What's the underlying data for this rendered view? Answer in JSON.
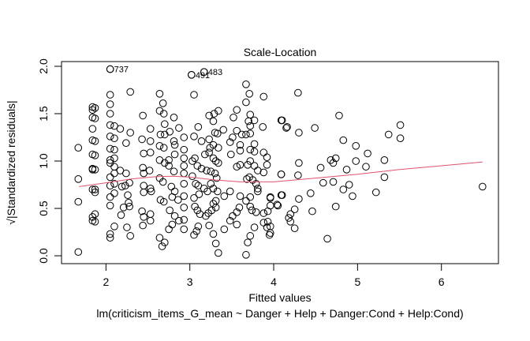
{
  "chart_data": {
    "type": "scatter",
    "title": "Scale-Location",
    "xlabel": "Fitted values",
    "sublabel": "lm(criticism_items_G_mean ~ Danger + Help + Danger:Cond + Help:Cond)",
    "ylabel": "√|Standardized residuals|",
    "xlim": [
      1.47,
      6.68
    ],
    "ylim": [
      -0.083,
      2.05
    ],
    "xticks": [
      2,
      3,
      4,
      5,
      6
    ],
    "xtick_labels": [
      "2",
      "3",
      "4",
      "5",
      "6"
    ],
    "yticks": [
      0.0,
      0.5,
      1.0,
      1.5,
      2.0
    ],
    "ytick_labels": [
      "0.0",
      "0.5",
      "1.0",
      "1.5",
      "2.0"
    ],
    "grid": false,
    "point_color": "#000000",
    "smooth_color": "#DF536B",
    "labeled_points": [
      {
        "label": "737",
        "x": 2.05,
        "y": 1.97
      },
      {
        "label": "491",
        "x": 3.02,
        "y": 1.91
      },
      {
        "label": "483",
        "x": 3.17,
        "y": 1.94
      }
    ],
    "smooth": [
      [
        1.68,
        0.73
      ],
      [
        2.0,
        0.77
      ],
      [
        2.3,
        0.81
      ],
      [
        2.6,
        0.835
      ],
      [
        2.8,
        0.84
      ],
      [
        3.0,
        0.83
      ],
      [
        3.3,
        0.8
      ],
      [
        3.6,
        0.78
      ],
      [
        4.0,
        0.78
      ],
      [
        4.5,
        0.82
      ],
      [
        5.0,
        0.86
      ],
      [
        5.5,
        0.91
      ],
      [
        6.0,
        0.95
      ],
      [
        6.49,
        0.99
      ]
    ],
    "points": [
      [
        1.67,
        1.14
      ],
      [
        1.67,
        0.81
      ],
      [
        1.67,
        0.57
      ],
      [
        1.67,
        0.04
      ],
      [
        1.84,
        1.57
      ],
      [
        1.84,
        1.54
      ],
      [
        1.84,
        1.46
      ],
      [
        1.84,
        1.34
      ],
      [
        1.84,
        1.22
      ],
      [
        1.84,
        1.07
      ],
      [
        1.84,
        0.91
      ],
      [
        1.84,
        0.92
      ],
      [
        1.84,
        0.7
      ],
      [
        1.84,
        0.41
      ],
      [
        1.84,
        0.37
      ],
      [
        1.87,
        1.56
      ],
      [
        1.87,
        1.45
      ],
      [
        1.87,
        1.21
      ],
      [
        1.87,
        1.06
      ],
      [
        1.87,
        0.91
      ],
      [
        1.87,
        0.7
      ],
      [
        1.87,
        0.67
      ],
      [
        1.87,
        0.44
      ],
      [
        1.87,
        0.36
      ],
      [
        2.05,
        1.97
      ],
      [
        2.05,
        1.7
      ],
      [
        2.05,
        1.6
      ],
      [
        2.05,
        1.5
      ],
      [
        2.05,
        1.38
      ],
      [
        2.05,
        1.26
      ],
      [
        2.05,
        1.13
      ],
      [
        2.05,
        1.01
      ],
      [
        2.05,
        0.98
      ],
      [
        2.05,
        0.83
      ],
      [
        2.05,
        0.74
      ],
      [
        2.05,
        0.62
      ],
      [
        2.05,
        0.53
      ],
      [
        2.05,
        0.23
      ],
      [
        2.05,
        0.19
      ],
      [
        2.1,
        1.37
      ],
      [
        2.1,
        1.24
      ],
      [
        2.1,
        1.12
      ],
      [
        2.1,
        1.03
      ],
      [
        2.1,
        0.94
      ],
      [
        2.1,
        0.87
      ],
      [
        2.1,
        0.76
      ],
      [
        2.1,
        0.66
      ],
      [
        2.1,
        0.31
      ],
      [
        2.17,
        1.34
      ],
      [
        2.24,
        1.19
      ],
      [
        2.29,
        1.3
      ],
      [
        2.29,
        1.73
      ],
      [
        2.17,
        0.9
      ],
      [
        2.24,
        0.87
      ],
      [
        2.19,
        0.73
      ],
      [
        2.23,
        0.74
      ],
      [
        2.28,
        0.77
      ],
      [
        2.26,
        0.64
      ],
      [
        2.28,
        0.52
      ],
      [
        2.21,
        0.51
      ],
      [
        2.18,
        0.43
      ],
      [
        2.25,
        0.3
      ],
      [
        2.29,
        0.21
      ],
      [
        2.27,
        0.56
      ],
      [
        2.44,
        1.48
      ],
      [
        2.43,
        1.23
      ],
      [
        2.45,
        1.08
      ],
      [
        2.44,
        0.93
      ],
      [
        2.45,
        0.87
      ],
      [
        2.45,
        0.74
      ],
      [
        2.45,
        0.67
      ],
      [
        2.43,
        0.47
      ],
      [
        2.44,
        0.32
      ],
      [
        2.45,
        0.41
      ],
      [
        2.53,
        1.34
      ],
      [
        2.53,
        1.21
      ],
      [
        2.53,
        1.09
      ],
      [
        2.52,
        0.9
      ],
      [
        2.53,
        0.71
      ],
      [
        2.54,
        0.68
      ],
      [
        2.53,
        0.44
      ],
      [
        2.53,
        0.37
      ],
      [
        2.64,
        1.71
      ],
      [
        2.68,
        1.61
      ],
      [
        2.64,
        1.53
      ],
      [
        2.69,
        1.5
      ],
      [
        2.7,
        1.39
      ],
      [
        2.65,
        1.28
      ],
      [
        2.7,
        1.28
      ],
      [
        2.64,
        1.16
      ],
      [
        2.69,
        1.14
      ],
      [
        2.64,
        1.01
      ],
      [
        2.7,
        0.98
      ],
      [
        2.64,
        0.82
      ],
      [
        2.68,
        0.78
      ],
      [
        2.65,
        0.59
      ],
      [
        2.69,
        0.57
      ],
      [
        2.64,
        0.19
      ],
      [
        2.7,
        0.14
      ],
      [
        2.67,
        0.1
      ],
      [
        2.75,
        1.01
      ],
      [
        2.81,
        1.46
      ],
      [
        2.87,
        1.35
      ],
      [
        2.76,
        1.31
      ],
      [
        2.81,
        1.21
      ],
      [
        2.82,
        1.07
      ],
      [
        2.81,
        0.89
      ],
      [
        2.75,
        0.95
      ],
      [
        2.78,
        0.73
      ],
      [
        2.82,
        0.68
      ],
      [
        2.79,
        0.62
      ],
      [
        2.76,
        0.48
      ],
      [
        2.82,
        0.42
      ],
      [
        2.87,
        0.37
      ],
      [
        2.79,
        0.33
      ],
      [
        2.75,
        0.28
      ],
      [
        2.82,
        1.17
      ],
      [
        2.86,
        0.59
      ],
      [
        3.02,
        1.91
      ],
      [
        3.17,
        1.94
      ],
      [
        3.05,
        1.7
      ],
      [
        3.67,
        1.81
      ],
      [
        3.71,
        1.71
      ],
      [
        3.88,
        1.68
      ],
      [
        3.67,
        1.62
      ],
      [
        3.23,
        1.48
      ],
      [
        3.29,
        1.5
      ],
      [
        3.34,
        1.53
      ],
      [
        3.28,
        1.42
      ],
      [
        3.56,
        1.54
      ],
      [
        3.52,
        1.46
      ],
      [
        3.72,
        1.49
      ],
      [
        3.77,
        1.43
      ],
      [
        3.7,
        1.42
      ],
      [
        3.72,
        1.37
      ],
      [
        3.87,
        1.36
      ],
      [
        4.09,
        1.43
      ],
      [
        3.1,
        1.36
      ],
      [
        3.05,
        1.26
      ],
      [
        3.4,
        1.33
      ],
      [
        3.3,
        1.3
      ],
      [
        3.33,
        1.29
      ],
      [
        3.56,
        1.32
      ],
      [
        3.62,
        1.28
      ],
      [
        3.67,
        1.28
      ],
      [
        3.72,
        1.29
      ],
      [
        3.51,
        1.25
      ],
      [
        3.48,
        1.2
      ],
      [
        3.77,
        1.18
      ],
      [
        3.14,
        1.21
      ],
      [
        3.23,
        1.23
      ],
      [
        3.28,
        1.17
      ],
      [
        3.34,
        1.14
      ],
      [
        3.24,
        1.14
      ],
      [
        3.6,
        1.17
      ],
      [
        3.6,
        1.11
      ],
      [
        3.72,
        1.12
      ],
      [
        3.77,
        1.1
      ],
      [
        3.49,
        1.07
      ],
      [
        3.88,
        1.09
      ],
      [
        3.92,
        1.04
      ],
      [
        3.92,
        0.96
      ],
      [
        2.93,
        1.25
      ],
      [
        2.93,
        1.12
      ],
      [
        2.93,
        1.03
      ],
      [
        2.93,
        0.95
      ],
      [
        2.93,
        0.87
      ],
      [
        2.93,
        0.76
      ],
      [
        2.93,
        0.63
      ],
      [
        2.93,
        0.51
      ],
      [
        2.93,
        0.38
      ],
      [
        2.93,
        0.28
      ],
      [
        3.18,
        1.07
      ],
      [
        3.23,
        1.09
      ],
      [
        3.28,
        1.03
      ],
      [
        3.31,
        1.0
      ],
      [
        3.34,
        0.98
      ],
      [
        3.06,
        1.03
      ],
      [
        3.03,
        1.0
      ],
      [
        3.09,
        0.95
      ],
      [
        3.14,
        0.92
      ],
      [
        3.2,
        0.9
      ],
      [
        3.25,
        0.89
      ],
      [
        3.3,
        0.87
      ],
      [
        3.32,
        0.82
      ],
      [
        3.03,
        0.84
      ],
      [
        3.07,
        0.76
      ],
      [
        3.1,
        0.74
      ],
      [
        3.17,
        0.71
      ],
      [
        3.21,
        0.68
      ],
      [
        3.25,
        0.76
      ],
      [
        3.28,
        0.71
      ],
      [
        3.33,
        0.68
      ],
      [
        3.56,
        0.94
      ],
      [
        3.6,
        0.96
      ],
      [
        3.69,
        0.96
      ],
      [
        3.72,
        1.0
      ],
      [
        3.77,
        0.95
      ],
      [
        3.81,
        0.9
      ],
      [
        3.88,
        0.88
      ],
      [
        4.09,
        0.86
      ],
      [
        3.68,
        0.81
      ],
      [
        3.71,
        0.83
      ],
      [
        3.75,
        0.8
      ],
      [
        3.79,
        0.76
      ],
      [
        3.81,
        0.71
      ],
      [
        3.81,
        0.68
      ],
      [
        3.67,
        0.58
      ],
      [
        3.72,
        0.52
      ],
      [
        3.74,
        0.48
      ],
      [
        3.79,
        0.46
      ],
      [
        3.88,
        0.45
      ],
      [
        3.72,
        0.62
      ],
      [
        3.6,
        0.63
      ],
      [
        3.48,
        0.68
      ],
      [
        3.41,
        0.63
      ],
      [
        3.31,
        0.58
      ],
      [
        3.28,
        0.55
      ],
      [
        3.31,
        0.51
      ],
      [
        3.26,
        0.48
      ],
      [
        3.22,
        0.45
      ],
      [
        3.19,
        0.42
      ],
      [
        3.12,
        0.44
      ],
      [
        3.09,
        0.48
      ],
      [
        3.06,
        0.52
      ],
      [
        3.05,
        0.61
      ],
      [
        3.11,
        0.65
      ],
      [
        3.59,
        0.51
      ],
      [
        3.56,
        0.46
      ],
      [
        3.51,
        0.42
      ],
      [
        3.48,
        0.37
      ],
      [
        3.56,
        0.33
      ],
      [
        3.41,
        0.28
      ],
      [
        3.88,
        0.35
      ],
      [
        3.92,
        0.3
      ],
      [
        3.77,
        0.3
      ],
      [
        3.95,
        0.22
      ],
      [
        3.72,
        0.21
      ],
      [
        3.69,
        0.14
      ],
      [
        3.67,
        0.01
      ],
      [
        3.34,
        0.03
      ],
      [
        3.31,
        0.13
      ],
      [
        3.28,
        0.23
      ],
      [
        3.23,
        0.32
      ],
      [
        3.1,
        0.31
      ],
      [
        3.08,
        0.26
      ],
      [
        3.05,
        0.22
      ],
      [
        3.96,
        0.61
      ],
      [
        4.05,
        0.53
      ],
      [
        4.09,
        0.64
      ],
      [
        4.29,
        1.72
      ],
      [
        4.1,
        1.43
      ],
      [
        4.15,
        1.35
      ],
      [
        4.16,
        1.36
      ],
      [
        4.3,
        1.3
      ],
      [
        4.49,
        1.35
      ],
      [
        4.78,
        1.48
      ],
      [
        4.83,
        1.22
      ],
      [
        4.98,
        1.16
      ],
      [
        5.12,
        1.08
      ],
      [
        5.32,
        1.01
      ],
      [
        5.37,
        1.28
      ],
      [
        5.51,
        1.38
      ],
      [
        5.51,
        1.24
      ],
      [
        4.68,
        1.01
      ],
      [
        4.74,
        1.03
      ],
      [
        4.71,
        0.98
      ],
      [
        4.56,
        0.93
      ],
      [
        4.3,
        0.98
      ],
      [
        4.87,
        0.91
      ],
      [
        4.98,
        1.0
      ],
      [
        5.1,
        0.94
      ],
      [
        4.29,
        0.85
      ],
      [
        4.09,
        0.86
      ],
      [
        4.59,
        0.77
      ],
      [
        4.71,
        0.78
      ],
      [
        4.9,
        0.75
      ],
      [
        4.83,
        0.7
      ],
      [
        5.32,
        0.83
      ],
      [
        5.22,
        0.67
      ],
      [
        4.94,
        0.63
      ],
      [
        6.49,
        0.73
      ],
      [
        4.44,
        0.66
      ],
      [
        4.1,
        0.64
      ],
      [
        4.3,
        0.6
      ],
      [
        3.96,
        0.62
      ],
      [
        3.96,
        0.53
      ],
      [
        4.04,
        0.54
      ],
      [
        4.25,
        0.49
      ],
      [
        4.2,
        0.44
      ],
      [
        4.18,
        0.4
      ],
      [
        4.2,
        0.36
      ],
      [
        4.46,
        0.47
      ],
      [
        4.74,
        0.52
      ],
      [
        4.25,
        0.29
      ],
      [
        4.64,
        0.18
      ],
      [
        3.93,
        0.47
      ],
      [
        3.93,
        0.36
      ],
      [
        3.96,
        0.31
      ],
      [
        3.96,
        0.24
      ]
    ]
  }
}
